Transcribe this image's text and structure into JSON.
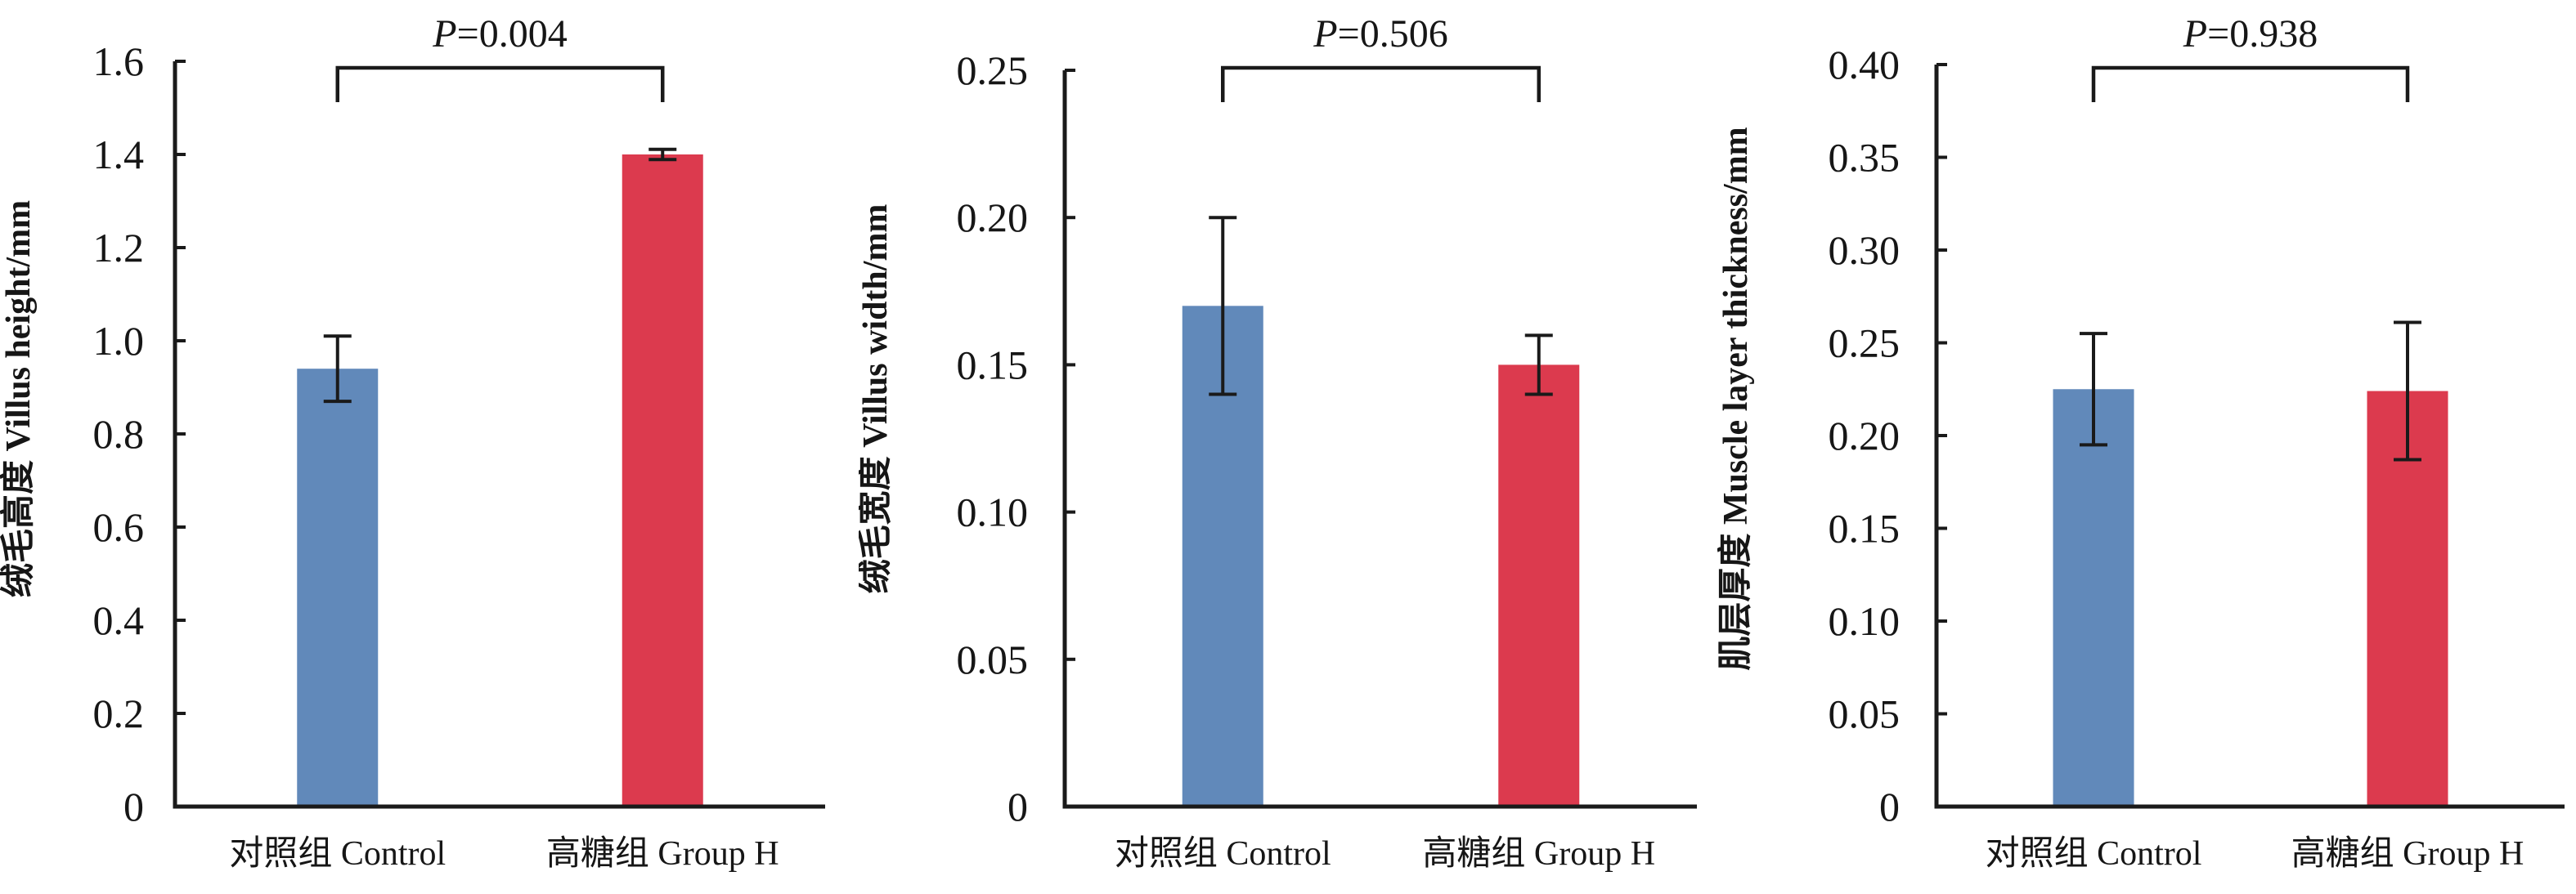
{
  "figure": {
    "background": "#ffffff",
    "text_color": "#161616",
    "axis_color": "#1a1a1a",
    "colors": {
      "control_bar": "#6189ba",
      "group_h_bar": "#dc3a4e"
    }
  },
  "chart_data": [
    {
      "type": "bar",
      "title": "P=0.004",
      "p_label": "P=0.004",
      "ylabel": "绒毛高度 Villus height/mm",
      "xlabel": "",
      "categories": [
        "对照组 Control",
        "高糖组 Group H"
      ],
      "series": [
        {
          "name": "mean",
          "values": [
            0.94,
            1.4
          ]
        },
        {
          "name": "error",
          "values": [
            0.07,
            0.011
          ]
        }
      ],
      "values": [
        0.94,
        1.4
      ],
      "errors": [
        0.07,
        0.011
      ],
      "bar_colors": [
        "#6189ba",
        "#dc3a4e"
      ],
      "ylim": [
        0,
        1.6
      ],
      "ytick_step": 0.2,
      "ytick_labels": [
        "0",
        "0.2",
        "0.4",
        "0.6",
        "0.8",
        "1.0",
        "1.2",
        "1.4",
        "1.6"
      ],
      "grid": false,
      "legend": "none",
      "significance_bracket": {
        "from": "对照组 Control",
        "to": "高糖组 Group H",
        "label": "P=0.004"
      }
    },
    {
      "type": "bar",
      "title": "P=0.506",
      "p_label": "P=0.506",
      "ylabel": "绒毛宽度 Villus width/mm",
      "xlabel": "",
      "categories": [
        "对照组 Control",
        "高糖组 Group H"
      ],
      "series": [
        {
          "name": "mean",
          "values": [
            0.17,
            0.15
          ]
        },
        {
          "name": "error",
          "values": [
            0.03,
            0.01
          ]
        }
      ],
      "values": [
        0.17,
        0.15
      ],
      "errors": [
        0.03,
        0.01
      ],
      "bar_colors": [
        "#6189ba",
        "#dc3a4e"
      ],
      "ylim": [
        0,
        0.25
      ],
      "ytick_step": 0.05,
      "ytick_labels": [
        "0",
        "0.05",
        "0.10",
        "0.15",
        "0.20",
        "0.25"
      ],
      "grid": false,
      "legend": "none",
      "significance_bracket": {
        "from": "对照组 Control",
        "to": "高糖组 Group H",
        "label": "P=0.506"
      }
    },
    {
      "type": "bar",
      "title": "P=0.938",
      "p_label": "P=0.938",
      "ylabel": "肌层厚度 Muscle layer thickness/mm",
      "xlabel": "",
      "categories": [
        "对照组 Control",
        "高糖组 Group H"
      ],
      "series": [
        {
          "name": "mean",
          "values": [
            0.225,
            0.224
          ]
        },
        {
          "name": "error",
          "values": [
            0.03,
            0.037
          ]
        }
      ],
      "values": [
        0.225,
        0.224
      ],
      "errors": [
        0.03,
        0.037
      ],
      "bar_colors": [
        "#6189ba",
        "#dc3a4e"
      ],
      "ylim": [
        0,
        0.4
      ],
      "ytick_step": 0.05,
      "ytick_labels": [
        "0",
        "0.05",
        "0.10",
        "0.15",
        "0.20",
        "0.25",
        "0.30",
        "0.35",
        "0.40"
      ],
      "grid": false,
      "legend": "none",
      "significance_bracket": {
        "from": "对照组 Control",
        "to": "高糖组 Group H",
        "label": "P=0.938"
      }
    }
  ]
}
